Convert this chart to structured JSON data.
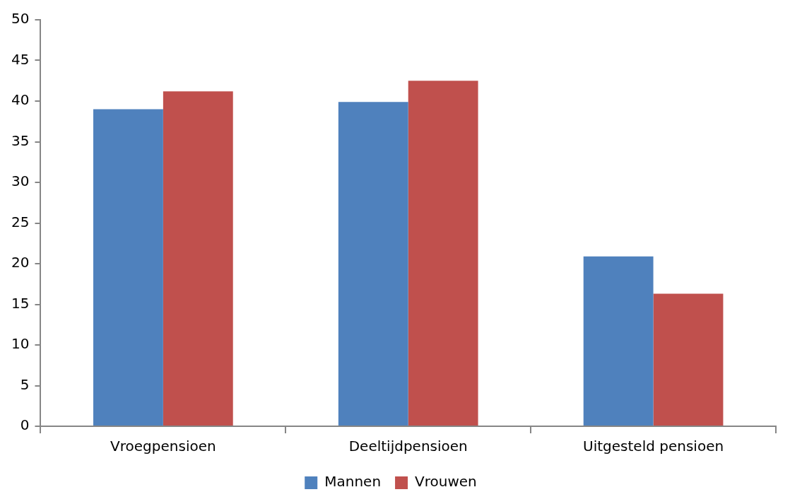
{
  "chart_data": {
    "type": "bar",
    "categories": [
      "Vroegpensioen",
      "Deeltijdpensioen",
      "Uitgesteld pensioen"
    ],
    "series": [
      {
        "name": "Mannen",
        "color": "#4f81bd",
        "values": [
          39,
          39.9,
          20.9
        ]
      },
      {
        "name": "Vrouwen",
        "color": "#c0504d",
        "values": [
          41.2,
          42.5,
          16.3
        ]
      }
    ],
    "ylim": [
      0,
      50
    ],
    "yticks": [
      0,
      5,
      10,
      15,
      20,
      25,
      30,
      35,
      40,
      45,
      50
    ],
    "grid": false,
    "legend": "bottom"
  }
}
